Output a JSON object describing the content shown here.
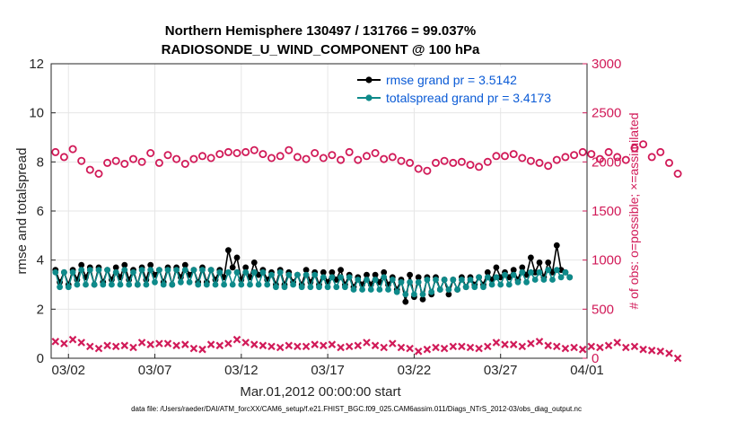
{
  "chart_data": {
    "type": "line",
    "title_line1": "Northern Hemisphere 130497 / 131766 = 99.037%",
    "title_line2": "RADIOSONDE_U_WIND_COMPONENT @ 100 hPa",
    "xlabel": "Mar.01,2012 00:00:00 start",
    "ylabel_left": "rmse and totalspread",
    "ylabel_right": "# of obs: o=possible; ×=assimilated",
    "xlim": [
      0,
      31
    ],
    "ylim_left": [
      0,
      12
    ],
    "ylim_right": [
      0,
      3000
    ],
    "x_ticks": [
      {
        "value": 1,
        "label": "03/02"
      },
      {
        "value": 6,
        "label": "03/07"
      },
      {
        "value": 11,
        "label": "03/12"
      },
      {
        "value": 16,
        "label": "03/17"
      },
      {
        "value": 21,
        "label": "03/22"
      },
      {
        "value": 26,
        "label": "03/27"
      },
      {
        "value": 31,
        "label": "04/01"
      }
    ],
    "y_ticks_left": [
      0,
      2,
      4,
      6,
      8,
      10,
      12
    ],
    "y_ticks_right": [
      0,
      500,
      1000,
      1500,
      2000,
      2500,
      3000
    ],
    "series": [
      {
        "name": "rmse",
        "legend": "rmse grand pr = 3.5142",
        "color": "#000000",
        "axis": "left",
        "interval_days": 0.25,
        "values": [
          3.6,
          3.1,
          3.5,
          3.0,
          3.6,
          3.2,
          3.8,
          3.3,
          3.7,
          3.0,
          3.7,
          3.1,
          3.6,
          3.2,
          3.7,
          3.3,
          3.8,
          3.2,
          3.6,
          3.0,
          3.7,
          3.2,
          3.8,
          3.4,
          3.6,
          3.1,
          3.7,
          3.0,
          3.7,
          3.3,
          3.8,
          3.4,
          3.6,
          3.1,
          3.7,
          3.1,
          3.6,
          3.2,
          3.6,
          3.3,
          4.4,
          3.7,
          4.1,
          3.2,
          3.7,
          3.3,
          3.9,
          3.4,
          3.6,
          3.2,
          3.5,
          3.0,
          3.6,
          3.0,
          3.5,
          3.1,
          3.4,
          3.0,
          3.6,
          3.1,
          3.5,
          3.0,
          3.5,
          3.1,
          3.5,
          3.2,
          3.6,
          3.0,
          3.4,
          2.9,
          3.3,
          3.0,
          3.4,
          3.0,
          3.4,
          3.1,
          3.5,
          3.0,
          3.3,
          2.8,
          3.2,
          2.3,
          3.4,
          2.5,
          3.3,
          2.4,
          3.3,
          2.6,
          3.3,
          2.8,
          3.2,
          2.6,
          3.2,
          2.8,
          3.3,
          2.9,
          3.3,
          3.0,
          3.3,
          3.0,
          3.5,
          3.2,
          3.7,
          3.3,
          3.5,
          3.3,
          3.6,
          3.2,
          3.7,
          3.4,
          4.1,
          3.5,
          3.9,
          3.3,
          3.9,
          3.5,
          4.6,
          3.6,
          3.5,
          3.3
        ]
      },
      {
        "name": "totalspread",
        "legend": "totalspread grand pr = 3.4173",
        "color": "#0e8a8a",
        "axis": "left",
        "interval_days": 0.25,
        "values": [
          3.5,
          2.9,
          3.5,
          2.9,
          3.5,
          3.0,
          3.6,
          3.0,
          3.6,
          3.0,
          3.6,
          3.0,
          3.6,
          3.0,
          3.5,
          3.0,
          3.6,
          3.0,
          3.5,
          3.0,
          3.6,
          3.0,
          3.6,
          3.1,
          3.6,
          3.0,
          3.6,
          3.0,
          3.6,
          3.1,
          3.6,
          3.1,
          3.6,
          3.0,
          3.6,
          3.0,
          3.6,
          3.0,
          3.5,
          3.0,
          3.5,
          3.0,
          3.5,
          3.0,
          3.5,
          3.0,
          3.5,
          3.0,
          3.5,
          3.0,
          3.4,
          2.9,
          3.5,
          2.9,
          3.4,
          3.0,
          3.4,
          2.9,
          3.4,
          2.9,
          3.4,
          2.9,
          3.3,
          2.9,
          3.3,
          2.9,
          3.3,
          2.9,
          3.3,
          2.8,
          3.2,
          2.8,
          3.2,
          2.8,
          3.2,
          2.8,
          3.3,
          2.8,
          3.2,
          2.7,
          3.1,
          2.6,
          3.1,
          2.6,
          3.1,
          2.6,
          3.2,
          2.7,
          3.2,
          2.8,
          3.2,
          2.8,
          3.2,
          2.8,
          3.2,
          2.9,
          3.2,
          2.9,
          3.3,
          2.9,
          3.3,
          3.0,
          3.3,
          3.0,
          3.4,
          3.0,
          3.4,
          3.1,
          3.5,
          3.1,
          3.5,
          3.2,
          3.5,
          3.2,
          3.6,
          3.2,
          3.6,
          3.3,
          3.5,
          3.3
        ]
      },
      {
        "name": "obs_possible",
        "legend": "",
        "color": "#d11a58",
        "axis": "right",
        "marker": "o",
        "interval_days": 0.5,
        "values": [
          2100,
          2050,
          2130,
          2010,
          1920,
          1880,
          1990,
          2010,
          1980,
          2030,
          2000,
          2090,
          1990,
          2070,
          2030,
          1980,
          2030,
          2060,
          2040,
          2080,
          2100,
          2090,
          2100,
          2120,
          2080,
          2040,
          2060,
          2120,
          2050,
          2030,
          2090,
          2040,
          2070,
          2020,
          2100,
          2020,
          2060,
          2090,
          2030,
          2050,
          2010,
          1990,
          1930,
          1910,
          1990,
          2010,
          1990,
          2000,
          1970,
          1950,
          2000,
          2060,
          2060,
          2080,
          2040,
          2010,
          1990,
          1960,
          2020,
          2050,
          2070,
          2100,
          2080,
          2030,
          2100,
          2050,
          2020,
          2140,
          2180,
          2050,
          2100,
          1990,
          1880
        ]
      },
      {
        "name": "obs_assimilated",
        "legend": "",
        "color": "#d11a58",
        "axis": "right",
        "marker": "x",
        "interval_days": 0.5,
        "values": [
          170,
          150,
          190,
          160,
          120,
          100,
          130,
          120,
          130,
          110,
          160,
          140,
          150,
          150,
          130,
          140,
          100,
          90,
          140,
          130,
          150,
          190,
          160,
          140,
          130,
          120,
          110,
          130,
          120,
          120,
          140,
          130,
          140,
          110,
          120,
          130,
          160,
          130,
          110,
          150,
          110,
          100,
          70,
          90,
          110,
          100,
          120,
          120,
          110,
          100,
          120,
          160,
          140,
          140,
          120,
          150,
          170,
          130,
          120,
          100,
          110,
          90,
          120,
          110,
          130,
          160,
          110,
          120,
          90,
          80,
          70,
          50,
          0
        ]
      }
    ]
  },
  "footnote": "data file: /Users/raeder/DAI/ATM_forcXX/CAM6_setup/f.e21.FHIST_BGC.f09_025.CAM6assim.011/Diags_NTrS_2012-03/obs_diag_output.nc"
}
